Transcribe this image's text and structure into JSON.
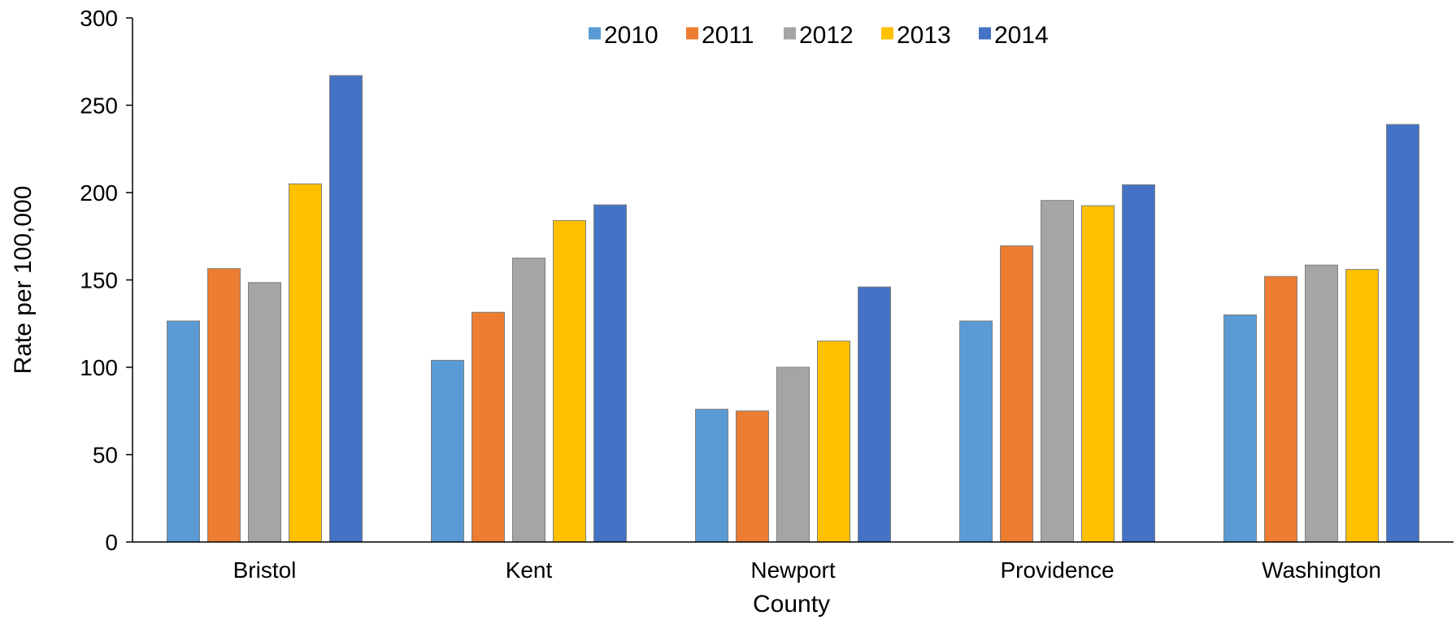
{
  "chart_data": {
    "type": "bar",
    "title": "",
    "xlabel": "County",
    "ylabel": "Rate per 100,000",
    "ylim": [
      0,
      300
    ],
    "yticks": [
      0,
      50,
      100,
      150,
      200,
      250,
      300
    ],
    "grid": false,
    "legend_position": "top-center",
    "categories": [
      "Bristol",
      "Kent",
      "Newport",
      "Providence",
      "Washington"
    ],
    "series": [
      {
        "name": "2010",
        "color": "#5b9bd5",
        "values": [
          126.5,
          104,
          76,
          126.5,
          130
        ]
      },
      {
        "name": "2011",
        "color": "#ed7d31",
        "values": [
          156.5,
          131.5,
          75,
          169.5,
          152
        ]
      },
      {
        "name": "2012",
        "color": "#a5a5a5",
        "values": [
          148.5,
          162.5,
          100,
          195.5,
          158.5
        ]
      },
      {
        "name": "2013",
        "color": "#ffc000",
        "values": [
          205,
          184,
          115,
          192.5,
          156
        ]
      },
      {
        "name": "2014",
        "color": "#4472c4",
        "values": [
          267,
          193,
          146,
          204.5,
          239
        ]
      }
    ]
  }
}
